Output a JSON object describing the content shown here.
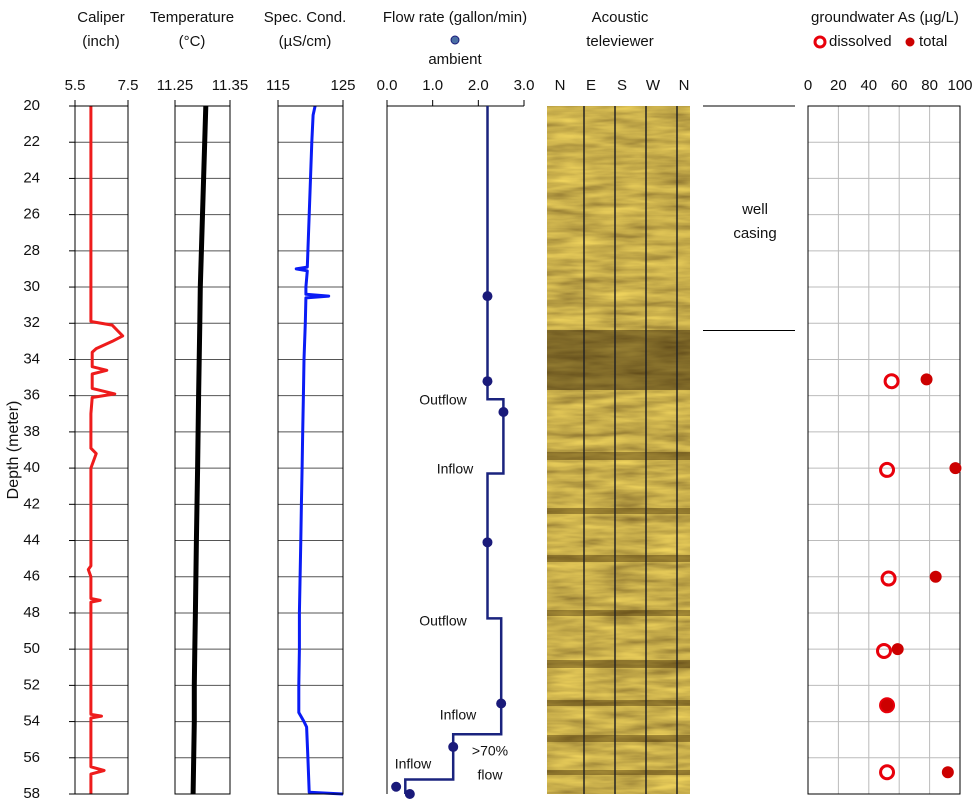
{
  "chart_data": [
    {
      "type": "line",
      "title": [
        "Caliper",
        "(inch)"
      ],
      "ylabel": "Depth (meter)",
      "ylim": [
        20,
        58
      ],
      "yticks": [
        20,
        22,
        24,
        26,
        28,
        30,
        32,
        34,
        36,
        38,
        40,
        42,
        44,
        46,
        48,
        50,
        52,
        54,
        56,
        58
      ],
      "xlim": [
        5.5,
        7.5
      ],
      "xticks": [
        5.5,
        7.5
      ],
      "grid": true,
      "series": [
        {
          "color": "#ee1c1c",
          "depth": [
            20,
            22,
            24,
            26,
            28,
            30,
            31.9,
            32.1,
            32.4,
            32.7,
            33.0,
            33.4,
            33.6,
            34.4,
            34.6,
            34.8,
            35.6,
            35.9,
            36.1,
            37,
            38,
            38.9,
            39.2,
            40,
            42,
            44,
            45.4,
            45.6,
            46,
            47.2,
            47.3,
            47.4,
            48,
            50,
            52,
            53.6,
            53.7,
            53.8,
            55,
            56.5,
            56.7,
            56.9,
            58
          ],
          "values": [
            6.1,
            6.1,
            6.1,
            6.1,
            6.1,
            6.1,
            6.1,
            6.9,
            7.1,
            7.3,
            6.9,
            6.3,
            6.15,
            6.15,
            6.7,
            6.15,
            6.15,
            7.0,
            6.15,
            6.1,
            6.1,
            6.1,
            6.3,
            6.1,
            6.1,
            6.1,
            6.1,
            6.0,
            6.1,
            6.1,
            6.45,
            6.1,
            6.1,
            6.1,
            6.1,
            6.1,
            6.5,
            6.1,
            6.1,
            6.1,
            6.6,
            6.1,
            6.1
          ]
        }
      ]
    },
    {
      "type": "line",
      "title": [
        "Temperature",
        "(°C)"
      ],
      "xlim": [
        11.25,
        11.35
      ],
      "xticks": [
        11.25,
        11.35
      ],
      "grid": true,
      "series": [
        {
          "color": "#000000",
          "depth": [
            20,
            22,
            24,
            26,
            28,
            30,
            32,
            34,
            36,
            38,
            40,
            42,
            44,
            46,
            48,
            50,
            52,
            54,
            56,
            58
          ],
          "values": [
            11.306,
            11.304,
            11.302,
            11.3,
            11.298,
            11.296,
            11.295,
            11.294,
            11.293,
            11.292,
            11.291,
            11.29,
            11.289,
            11.288,
            11.287,
            11.286,
            11.285,
            11.285,
            11.284,
            11.283
          ]
        }
      ]
    },
    {
      "type": "line",
      "title": [
        "Spec. Cond.",
        "(µS/cm)"
      ],
      "xlim": [
        115,
        125
      ],
      "xticks": [
        115,
        125
      ],
      "grid": true,
      "series": [
        {
          "color": "#0a1cf5",
          "depth": [
            20,
            20.5,
            22,
            24,
            26,
            28,
            28.9,
            29.0,
            29.1,
            30,
            30.4,
            30.5,
            30.6,
            32,
            34,
            36,
            38,
            40,
            42,
            44,
            46,
            48,
            50,
            52,
            53.5,
            54,
            54.3,
            56,
            57.9,
            58
          ],
          "values": [
            120.7,
            120.4,
            120.2,
            120.0,
            119.8,
            119.6,
            119.5,
            117.8,
            119.5,
            119.3,
            119.3,
            122.8,
            119.3,
            119.2,
            119.0,
            118.9,
            118.8,
            118.7,
            118.6,
            118.5,
            118.4,
            118.3,
            118.3,
            118.2,
            118.2,
            119.0,
            119.4,
            119.6,
            119.8,
            125
          ]
        }
      ]
    },
    {
      "type": "flow",
      "title": "Flow rate (gallon/min)",
      "xlim": [
        0,
        3
      ],
      "xticks": [
        {
          "value": 0,
          "label": "0.0"
        },
        {
          "value": 1,
          "label": "1.0"
        },
        {
          "value": 2,
          "label": "2.0"
        },
        {
          "value": 3,
          "label": "3.0"
        }
      ],
      "grid": false,
      "series": [
        {
          "color": "#1a237e",
          "depth": [
            20,
            36.2,
            36.2,
            40.3,
            40.3,
            48.3,
            48.3,
            54.7,
            54.7,
            57.2,
            57.2,
            58
          ],
          "values": [
            2.2,
            2.2,
            2.55,
            2.55,
            2.2,
            2.2,
            2.5,
            2.5,
            1.45,
            1.45,
            0.4,
            0.4
          ]
        },
        {
          "name": "ambient",
          "color": "#1a1a7a",
          "depth": [
            30.5,
            35.2,
            36.9,
            44.1,
            53,
            55.4,
            57.6,
            58
          ],
          "values": [
            2.2,
            2.2,
            2.55,
            2.2,
            2.5,
            1.45,
            0.2,
            0.5
          ]
        }
      ],
      "annotations": [
        "Outflow",
        "Inflow",
        "Outflow",
        "Inflow",
        "Inflow",
        ">70%",
        "flow"
      ]
    },
    {
      "type": "image",
      "title": [
        "Acoustic",
        "televiewer"
      ],
      "categories": [
        "N",
        "E",
        "S",
        "W",
        "N"
      ]
    },
    {
      "type": "casing",
      "label": [
        "well",
        "casing"
      ],
      "depths": [
        20,
        32.4
      ]
    },
    {
      "type": "scatter",
      "title": "groundwater As (µg/L)",
      "xlim": [
        0,
        100
      ],
      "xticks": [
        0,
        20,
        40,
        60,
        80,
        100
      ],
      "grid": true,
      "series": [
        {
          "name": "dissolved",
          "color": "#e8000b",
          "marker": "open",
          "depth": [
            35.2,
            40.1,
            46.1,
            50.1,
            53.1,
            56.8
          ],
          "values": [
            55,
            52,
            53,
            50,
            52,
            52
          ]
        },
        {
          "name": "total",
          "color": "#cc0000",
          "marker": "filled",
          "depth": [
            35.1,
            40.0,
            46.0,
            50.0,
            53.1,
            56.8
          ],
          "values": [
            78,
            97,
            84,
            59,
            52,
            92
          ]
        }
      ]
    }
  ]
}
